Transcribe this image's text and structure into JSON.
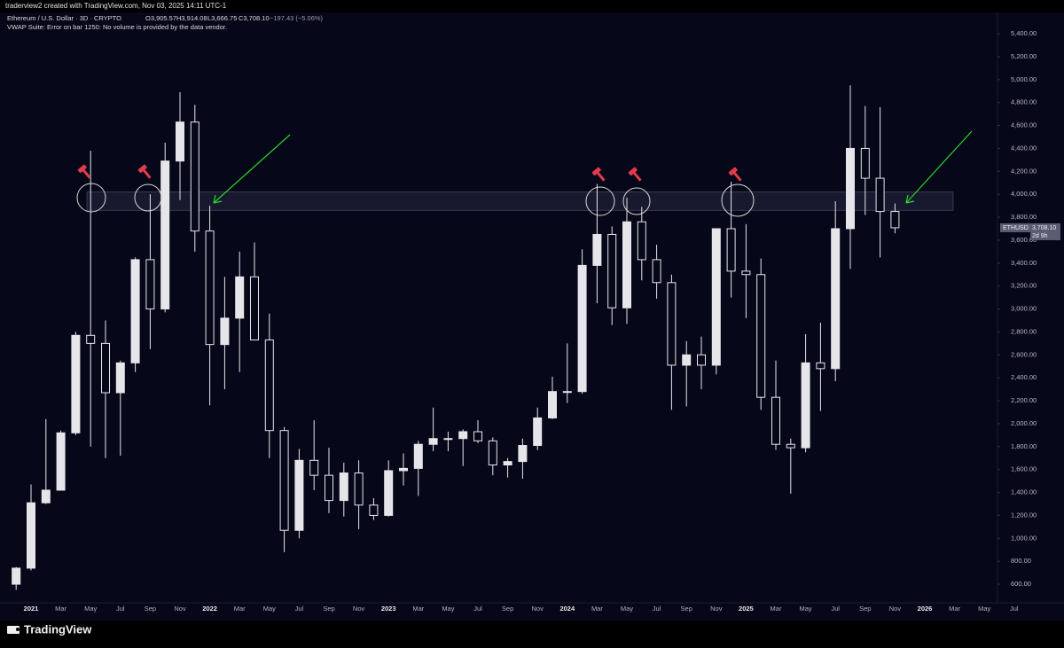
{
  "header": {
    "credit": "traderview2 created with TradingView.com, Nov 03, 2025 14:11 UTC-1",
    "symbol": "Ethereum / U.S. Dollar · 3D · CRYPTO",
    "open": "O3,905.57",
    "high": "H3,914.08",
    "low": "L3,666.75",
    "close": "C3,708.10",
    "change": "−197.43 (−5.06%)",
    "indicator": "VWAP Suite: Error on bar 1250: No volume is provided by the data vendor."
  },
  "footer": {
    "logo": "TradingView"
  },
  "chart_data": {
    "type": "candlestick",
    "color": "#e6e6ea",
    "grid": false,
    "ylim": [
      438,
      5586
    ],
    "yticks": [
      {
        "value": 600,
        "label": "600.00"
      },
      {
        "value": 800,
        "label": "800.00"
      },
      {
        "value": 1000,
        "label": "1,000.00"
      },
      {
        "value": 1200,
        "label": "1,200.00"
      },
      {
        "value": 1400,
        "label": "1,400.00"
      },
      {
        "value": 1600,
        "label": "1,600.00"
      },
      {
        "value": 1800,
        "label": "1,800.00"
      },
      {
        "value": 2000,
        "label": "2,000.00"
      },
      {
        "value": 2200,
        "label": "2,200.00"
      },
      {
        "value": 2400,
        "label": "2,400.00"
      },
      {
        "value": 2600,
        "label": "2,600.00"
      },
      {
        "value": 2800,
        "label": "2,800.00"
      },
      {
        "value": 3000,
        "label": "3,000.00"
      },
      {
        "value": 3200,
        "label": "3,200.00"
      },
      {
        "value": 3400,
        "label": "3,400.00"
      },
      {
        "value": 3600,
        "label": "3,600.00"
      },
      {
        "value": 3800,
        "label": "3,800.00"
      },
      {
        "value": 4000,
        "label": "4,000.00"
      },
      {
        "value": 4200,
        "label": "4,200.00"
      },
      {
        "value": 4400,
        "label": "4,400.00"
      },
      {
        "value": 4600,
        "label": "4,600.00"
      },
      {
        "value": 4800,
        "label": "4,800.00"
      },
      {
        "value": 5000,
        "label": "5,000.00"
      },
      {
        "value": 5200,
        "label": "5,200.00"
      },
      {
        "value": 5400,
        "label": "5,400.00"
      }
    ],
    "categories": [
      null,
      "2021",
      null,
      "Mar",
      null,
      "May",
      null,
      "Jul",
      null,
      "Sep",
      null,
      "Nov",
      null,
      "2022",
      null,
      "Mar",
      null,
      "May",
      null,
      "Jul",
      null,
      "Sep",
      null,
      "Nov",
      null,
      "2023",
      null,
      "Mar",
      null,
      "May",
      null,
      "Jul",
      null,
      "Sep",
      null,
      "Nov",
      null,
      "2024",
      null,
      "Mar",
      null,
      "May",
      null,
      "Jul",
      null,
      "Sep",
      null,
      "Nov",
      null,
      "2025",
      null,
      "Mar",
      null,
      "May",
      null,
      "Jul",
      null,
      "Sep",
      null,
      "Nov",
      null,
      "2026",
      null,
      "Mar",
      null,
      "May",
      null,
      "Jul"
    ],
    "open": [
      600,
      740,
      1310,
      1420,
      1920,
      2770,
      2700,
      2270,
      2530,
      3430,
      3000,
      4290,
      4630,
      3680,
      2690,
      2920,
      3280,
      2730,
      1940,
      1070,
      1680,
      1550,
      1330,
      1570,
      1290,
      1200,
      1590,
      1610,
      1820,
      1870,
      1870,
      1930,
      1850,
      1640,
      1670,
      1810,
      2050,
      2280,
      2280,
      3380,
      3650,
      3010,
      3760,
      3430,
      3230,
      2510,
      2600,
      2510,
      3700,
      3330,
      3300,
      2230,
      1820,
      1790,
      2530,
      2480,
      3700,
      4400,
      4140,
      3850,
      null,
      null,
      null,
      null,
      null,
      null,
      null,
      null
    ],
    "high": [
      750,
      1470,
      2040,
      1940,
      2800,
      4380,
      2900,
      2550,
      3450,
      4000,
      4450,
      4890,
      4780,
      3900,
      3280,
      3500,
      3580,
      2960,
      1970,
      1780,
      2030,
      1790,
      1660,
      1680,
      1350,
      1680,
      1740,
      1850,
      2140,
      1930,
      1950,
      2030,
      1880,
      1700,
      1870,
      2140,
      2410,
      2700,
      3520,
      4090,
      3720,
      3970,
      3890,
      3560,
      3300,
      2720,
      2760,
      3690,
      4110,
      3740,
      3440,
      2550,
      1870,
      2780,
      2880,
      3940,
      4950,
      4770,
      4760,
      3920,
      null,
      null,
      null,
      null,
      null,
      null,
      null,
      null
    ],
    "low": [
      550,
      720,
      1300,
      1420,
      1900,
      1800,
      1700,
      1720,
      2450,
      2650,
      2970,
      3950,
      3500,
      2160,
      2300,
      2450,
      2780,
      1700,
      880,
      1000,
      1420,
      1220,
      1190,
      1080,
      1160,
      1190,
      1460,
      1370,
      1760,
      1760,
      1630,
      1830,
      1550,
      1530,
      1520,
      1770,
      2040,
      2180,
      2260,
      3050,
      2860,
      2870,
      3250,
      3090,
      2120,
      2150,
      2300,
      2430,
      3100,
      2920,
      2120,
      1770,
      1390,
      1750,
      2110,
      2370,
      3350,
      3820,
      3450,
      3660,
      null,
      null,
      null,
      null,
      null,
      null,
      null,
      null
    ],
    "close": [
      740,
      1310,
      1420,
      1920,
      2770,
      2700,
      2270,
      2530,
      3430,
      3000,
      4290,
      4630,
      3680,
      2690,
      2920,
      3280,
      2730,
      1940,
      1070,
      1680,
      1550,
      1330,
      1570,
      1290,
      1200,
      1590,
      1610,
      1820,
      1870,
      1870,
      1930,
      1850,
      1640,
      1670,
      1810,
      2050,
      2280,
      2280,
      3380,
      3650,
      3010,
      3760,
      3430,
      3230,
      2510,
      2600,
      2510,
      3700,
      3330,
      3300,
      2230,
      1820,
      1790,
      2530,
      2480,
      3700,
      4400,
      4140,
      3850,
      3708.1,
      null,
      null,
      null,
      null,
      null,
      null,
      null,
      null
    ],
    "zone": {
      "low": 3860,
      "high": 4020
    },
    "last_price": {
      "symbol": "ETHUSD",
      "value": 3708.1,
      "label": "3,708.10",
      "countdown": "2d 9h"
    }
  }
}
